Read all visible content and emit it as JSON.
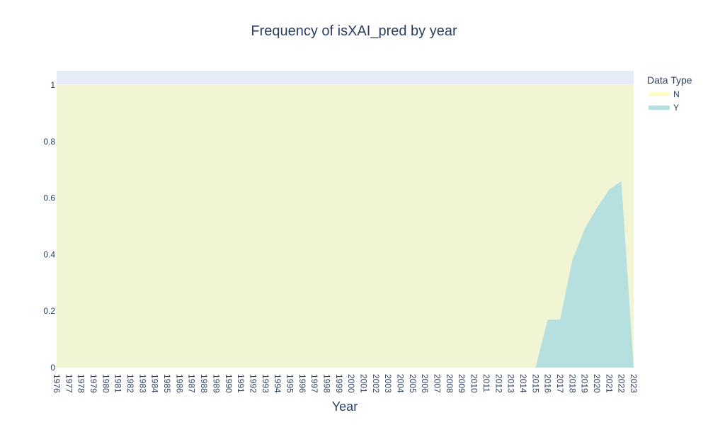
{
  "chart_data": {
    "type": "area",
    "title": "Frequency of isXAI_pred by year",
    "xlabel": "Year",
    "ylabel": "",
    "ylim": [
      0,
      1.05
    ],
    "yticks": [
      0,
      0.2,
      0.4,
      0.6,
      0.8,
      1
    ],
    "ytick_labels": [
      "0",
      "0.2",
      "0.4",
      "0.6",
      "0.8",
      "1"
    ],
    "grid": true,
    "stacked": true,
    "x": [
      1976,
      1977,
      1978,
      1979,
      1980,
      1981,
      1982,
      1983,
      1984,
      1985,
      1986,
      1987,
      1988,
      1989,
      1990,
      1991,
      1992,
      1993,
      1994,
      1995,
      1996,
      1997,
      1998,
      1999,
      2000,
      2001,
      2002,
      2003,
      2004,
      2005,
      2006,
      2007,
      2008,
      2009,
      2010,
      2011,
      2012,
      2013,
      2014,
      2015,
      2016,
      2017,
      2018,
      2019,
      2020,
      2021,
      2022,
      2023
    ],
    "legend": {
      "title": "Data Type",
      "position": "top-right"
    },
    "series": [
      {
        "name": "Y",
        "color": "#b5e0df",
        "values": [
          0,
          0,
          0,
          0,
          0,
          0,
          0,
          0,
          0,
          0,
          0,
          0,
          0,
          0,
          0,
          0,
          0,
          0,
          0,
          0,
          0,
          0,
          0,
          0,
          0,
          0,
          0,
          0,
          0,
          0,
          0,
          0,
          0,
          0,
          0,
          0,
          0,
          0,
          0,
          0,
          0.17,
          0.17,
          0.38,
          0.49,
          0.565,
          0.63,
          0.66,
          0
        ]
      },
      {
        "name": "N",
        "color": "#f1f5d4",
        "values": [
          1,
          1,
          1,
          1,
          1,
          1,
          1,
          1,
          1,
          1,
          1,
          1,
          1,
          1,
          1,
          1,
          1,
          1,
          1,
          1,
          1,
          1,
          1,
          1,
          1,
          1,
          1,
          1,
          1,
          1,
          1,
          1,
          1,
          1,
          1,
          1,
          1,
          1,
          1,
          1,
          0.83,
          0.83,
          0.62,
          0.51,
          0.435,
          0.37,
          0.34,
          1
        ]
      }
    ],
    "legend_order": [
      "N",
      "Y"
    ],
    "legend_colors": {
      "N": "#fdfbc8",
      "Y": "#b5e0df"
    },
    "plot_background": "#e5ecf6"
  }
}
